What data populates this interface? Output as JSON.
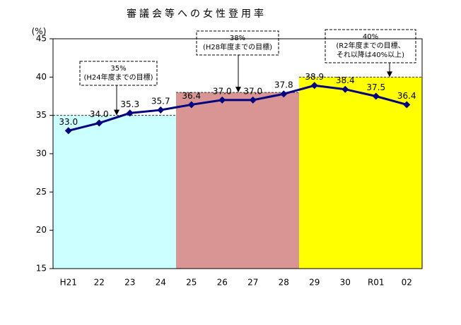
{
  "chart_data": {
    "type": "line",
    "title": "審議会等への女性登用率",
    "y_label": "(%)",
    "categories": [
      "H21",
      "22",
      "23",
      "24",
      "25",
      "26",
      "27",
      "28",
      "29",
      "30",
      "R01",
      "02"
    ],
    "values": [
      33.0,
      34.0,
      35.3,
      35.7,
      36.4,
      37.0,
      37.0,
      37.8,
      38.9,
      38.4,
      37.5,
      36.4
    ],
    "value_labels": [
      "33.0",
      "34.0",
      "35.3",
      "35.7",
      "36.4",
      "37.0",
      "37.0",
      "37.8",
      "38.9",
      "38.4",
      "37.5",
      "36.4"
    ],
    "color": "#000080",
    "ylim": [
      15,
      45
    ],
    "yticks": [
      15,
      20,
      25,
      30,
      35,
      40,
      45
    ],
    "targets": [
      {
        "value": 35,
        "color": "#ccffff",
        "lines": [
          "35%",
          "(H24年度までの目標)"
        ]
      },
      {
        "value": 38,
        "color": "#d99594",
        "lines": [
          "38%",
          "(H28年度までの目標)"
        ]
      },
      {
        "value": 40,
        "color": "#ffff00",
        "lines": [
          "40%",
          "(R2年度までの目標、",
          "それ以降は40%以上)"
        ]
      }
    ]
  }
}
